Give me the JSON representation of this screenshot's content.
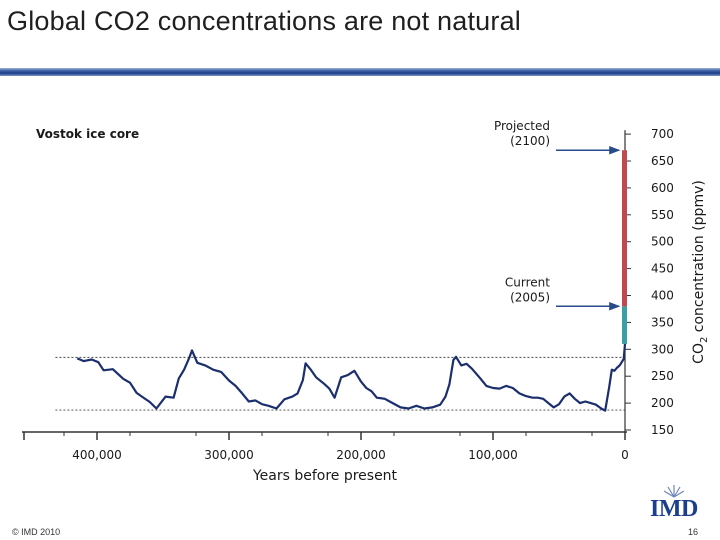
{
  "slide": {
    "title": "Global CO2 concentrations are not natural",
    "footer_copyright": "© IMD 2010",
    "page_number": "16",
    "logo_text": "IMD"
  },
  "colors": {
    "series_line": "#1b2f6e",
    "projected_bar": "#c0494f",
    "current_bar": "#3aa0a6",
    "title_rule": "#1b3f8a"
  },
  "chart_data": {
    "type": "line",
    "title": "Vostok ice core",
    "xlabel": "Years before present",
    "ylabel_parts": [
      "CO",
      "2",
      " concentration (ppmv)"
    ],
    "xlim": [
      430000,
      0
    ],
    "ylim": [
      150,
      700
    ],
    "x_reversed": true,
    "x_ticks": [
      {
        "value": 400000,
        "label": "400,000"
      },
      {
        "value": 300000,
        "label": "300,000"
      },
      {
        "value": 200000,
        "label": "200,000"
      },
      {
        "value": 100000,
        "label": "100,000"
      },
      {
        "value": 0,
        "label": "0"
      }
    ],
    "y_ticks": [
      150,
      200,
      250,
      300,
      350,
      400,
      450,
      500,
      550,
      600,
      650,
      700
    ],
    "reference_lines": [
      285,
      187
    ],
    "series": [
      {
        "points": [
          [
            415000,
            283
          ],
          [
            410000,
            278
          ],
          [
            404000,
            281
          ],
          [
            399000,
            276
          ],
          [
            395000,
            261
          ],
          [
            388000,
            263
          ],
          [
            380000,
            245
          ],
          [
            375000,
            238
          ],
          [
            370000,
            219
          ],
          [
            366000,
            212
          ],
          [
            360000,
            202
          ],
          [
            355000,
            190
          ],
          [
            348000,
            212
          ],
          [
            342000,
            210
          ],
          [
            338000,
            246
          ],
          [
            334000,
            262
          ],
          [
            330000,
            285
          ],
          [
            328000,
            298
          ],
          [
            324000,
            275
          ],
          [
            318000,
            270
          ],
          [
            312000,
            262
          ],
          [
            306000,
            258
          ],
          [
            300000,
            242
          ],
          [
            295000,
            232
          ],
          [
            290000,
            218
          ],
          [
            285000,
            203
          ],
          [
            280000,
            205
          ],
          [
            275000,
            198
          ],
          [
            270000,
            195
          ],
          [
            264000,
            190
          ],
          [
            258000,
            207
          ],
          [
            252000,
            212
          ],
          [
            248000,
            218
          ],
          [
            244000,
            243
          ],
          [
            242000,
            274
          ],
          [
            238000,
            262
          ],
          [
            234000,
            248
          ],
          [
            228000,
            236
          ],
          [
            224000,
            227
          ],
          [
            220000,
            210
          ],
          [
            215000,
            248
          ],
          [
            210000,
            252
          ],
          [
            205000,
            260
          ],
          [
            200000,
            240
          ],
          [
            196000,
            228
          ],
          [
            192000,
            222
          ],
          [
            188000,
            210
          ],
          [
            182000,
            208
          ],
          [
            176000,
            200
          ],
          [
            170000,
            192
          ],
          [
            164000,
            190
          ],
          [
            158000,
            195
          ],
          [
            152000,
            190
          ],
          [
            146000,
            192
          ],
          [
            140000,
            197
          ],
          [
            136000,
            212
          ],
          [
            133000,
            235
          ],
          [
            130000,
            280
          ],
          [
            128000,
            286
          ],
          [
            124000,
            270
          ],
          [
            120000,
            273
          ],
          [
            116000,
            264
          ],
          [
            110000,
            247
          ],
          [
            105000,
            232
          ],
          [
            100000,
            228
          ],
          [
            95000,
            227
          ],
          [
            90000,
            232
          ],
          [
            85000,
            228
          ],
          [
            80000,
            218
          ],
          [
            75000,
            213
          ],
          [
            70000,
            210
          ],
          [
            66000,
            210
          ],
          [
            62000,
            208
          ],
          [
            58000,
            200
          ],
          [
            54000,
            192
          ],
          [
            50000,
            198
          ],
          [
            46000,
            212
          ],
          [
            42000,
            218
          ],
          [
            38000,
            208
          ],
          [
            34000,
            200
          ],
          [
            30000,
            203
          ],
          [
            26000,
            200
          ],
          [
            22000,
            197
          ],
          [
            18000,
            190
          ],
          [
            15000,
            186
          ],
          [
            12000,
            230
          ],
          [
            10000,
            262
          ],
          [
            8000,
            260
          ],
          [
            6000,
            266
          ],
          [
            4000,
            270
          ],
          [
            2000,
            278
          ],
          [
            1000,
            282
          ],
          [
            0,
            310
          ]
        ]
      }
    ],
    "bars": [
      {
        "name": "current",
        "y_from": 310,
        "y_to": 380
      },
      {
        "name": "projected",
        "y_from": 380,
        "y_to": 670
      }
    ],
    "annotations": [
      {
        "lines": [
          "Projected",
          "(2100)"
        ],
        "points_to": 670
      },
      {
        "lines": [
          "Current",
          "(2005)"
        ],
        "points_to": 380
      }
    ],
    "grid": false,
    "legend": "none"
  }
}
